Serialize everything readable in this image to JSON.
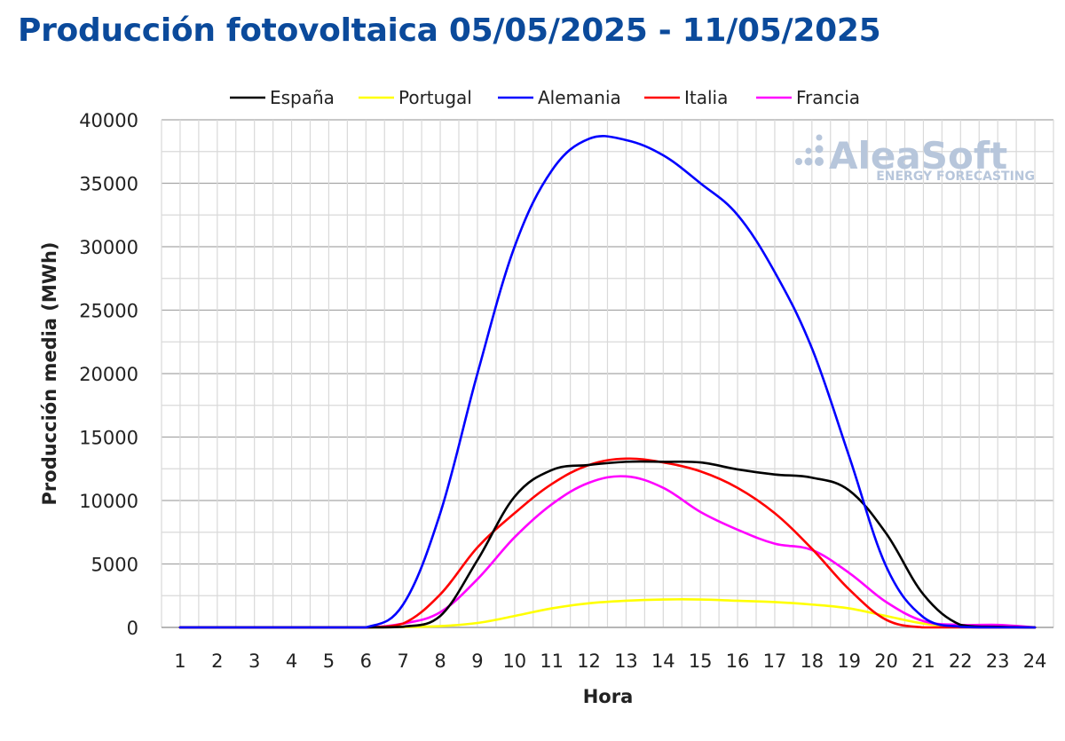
{
  "title": "Producción fotovoltaica 05/05/2025 - 11/05/2025",
  "watermark": {
    "main": "AleaSoft",
    "sub": "ENERGY FORECASTING"
  },
  "chart_data": {
    "type": "line",
    "xlabel": "Hora",
    "ylabel": "Producción media (MWh)",
    "ylim": [
      0,
      40000
    ],
    "yticks": [
      0,
      5000,
      10000,
      15000,
      20000,
      25000,
      30000,
      35000,
      40000
    ],
    "x": [
      1,
      2,
      3,
      4,
      5,
      6,
      7,
      8,
      9,
      10,
      11,
      12,
      13,
      14,
      15,
      16,
      17,
      18,
      19,
      20,
      21,
      22,
      23,
      24
    ],
    "legend_position": "top",
    "grid": true,
    "series": [
      {
        "name": "España",
        "color": "#000000",
        "values": [
          0,
          0,
          0,
          0,
          0,
          0,
          50,
          900,
          5300,
          10300,
          12400,
          12800,
          13050,
          13050,
          13000,
          12450,
          12050,
          11800,
          10800,
          7400,
          2600,
          200,
          50,
          0
        ]
      },
      {
        "name": "Portugal",
        "color": "#ffff00",
        "values": [
          0,
          0,
          0,
          0,
          0,
          0,
          30,
          100,
          350,
          900,
          1500,
          1900,
          2100,
          2200,
          2200,
          2100,
          2000,
          1800,
          1500,
          900,
          300,
          50,
          0,
          0
        ]
      },
      {
        "name": "Alemania",
        "color": "#0000ff",
        "values": [
          0,
          0,
          0,
          0,
          0,
          0,
          1800,
          9000,
          20000,
          30000,
          36000,
          38500,
          38400,
          37200,
          35000,
          32500,
          28000,
          22000,
          13500,
          4800,
          800,
          50,
          0,
          0
        ]
      },
      {
        "name": "Italia",
        "color": "#ff0000",
        "values": [
          0,
          0,
          0,
          0,
          0,
          0,
          300,
          2600,
          6300,
          9000,
          11300,
          12800,
          13300,
          13000,
          12300,
          11000,
          9000,
          6200,
          3000,
          600,
          0,
          0,
          0,
          0
        ]
      },
      {
        "name": "Francia",
        "color": "#ff00ff",
        "values": [
          0,
          0,
          0,
          0,
          0,
          0,
          300,
          1200,
          3800,
          7100,
          9700,
          11400,
          11900,
          11000,
          9100,
          7700,
          6600,
          6100,
          4300,
          2000,
          500,
          200,
          200,
          0
        ]
      }
    ]
  }
}
